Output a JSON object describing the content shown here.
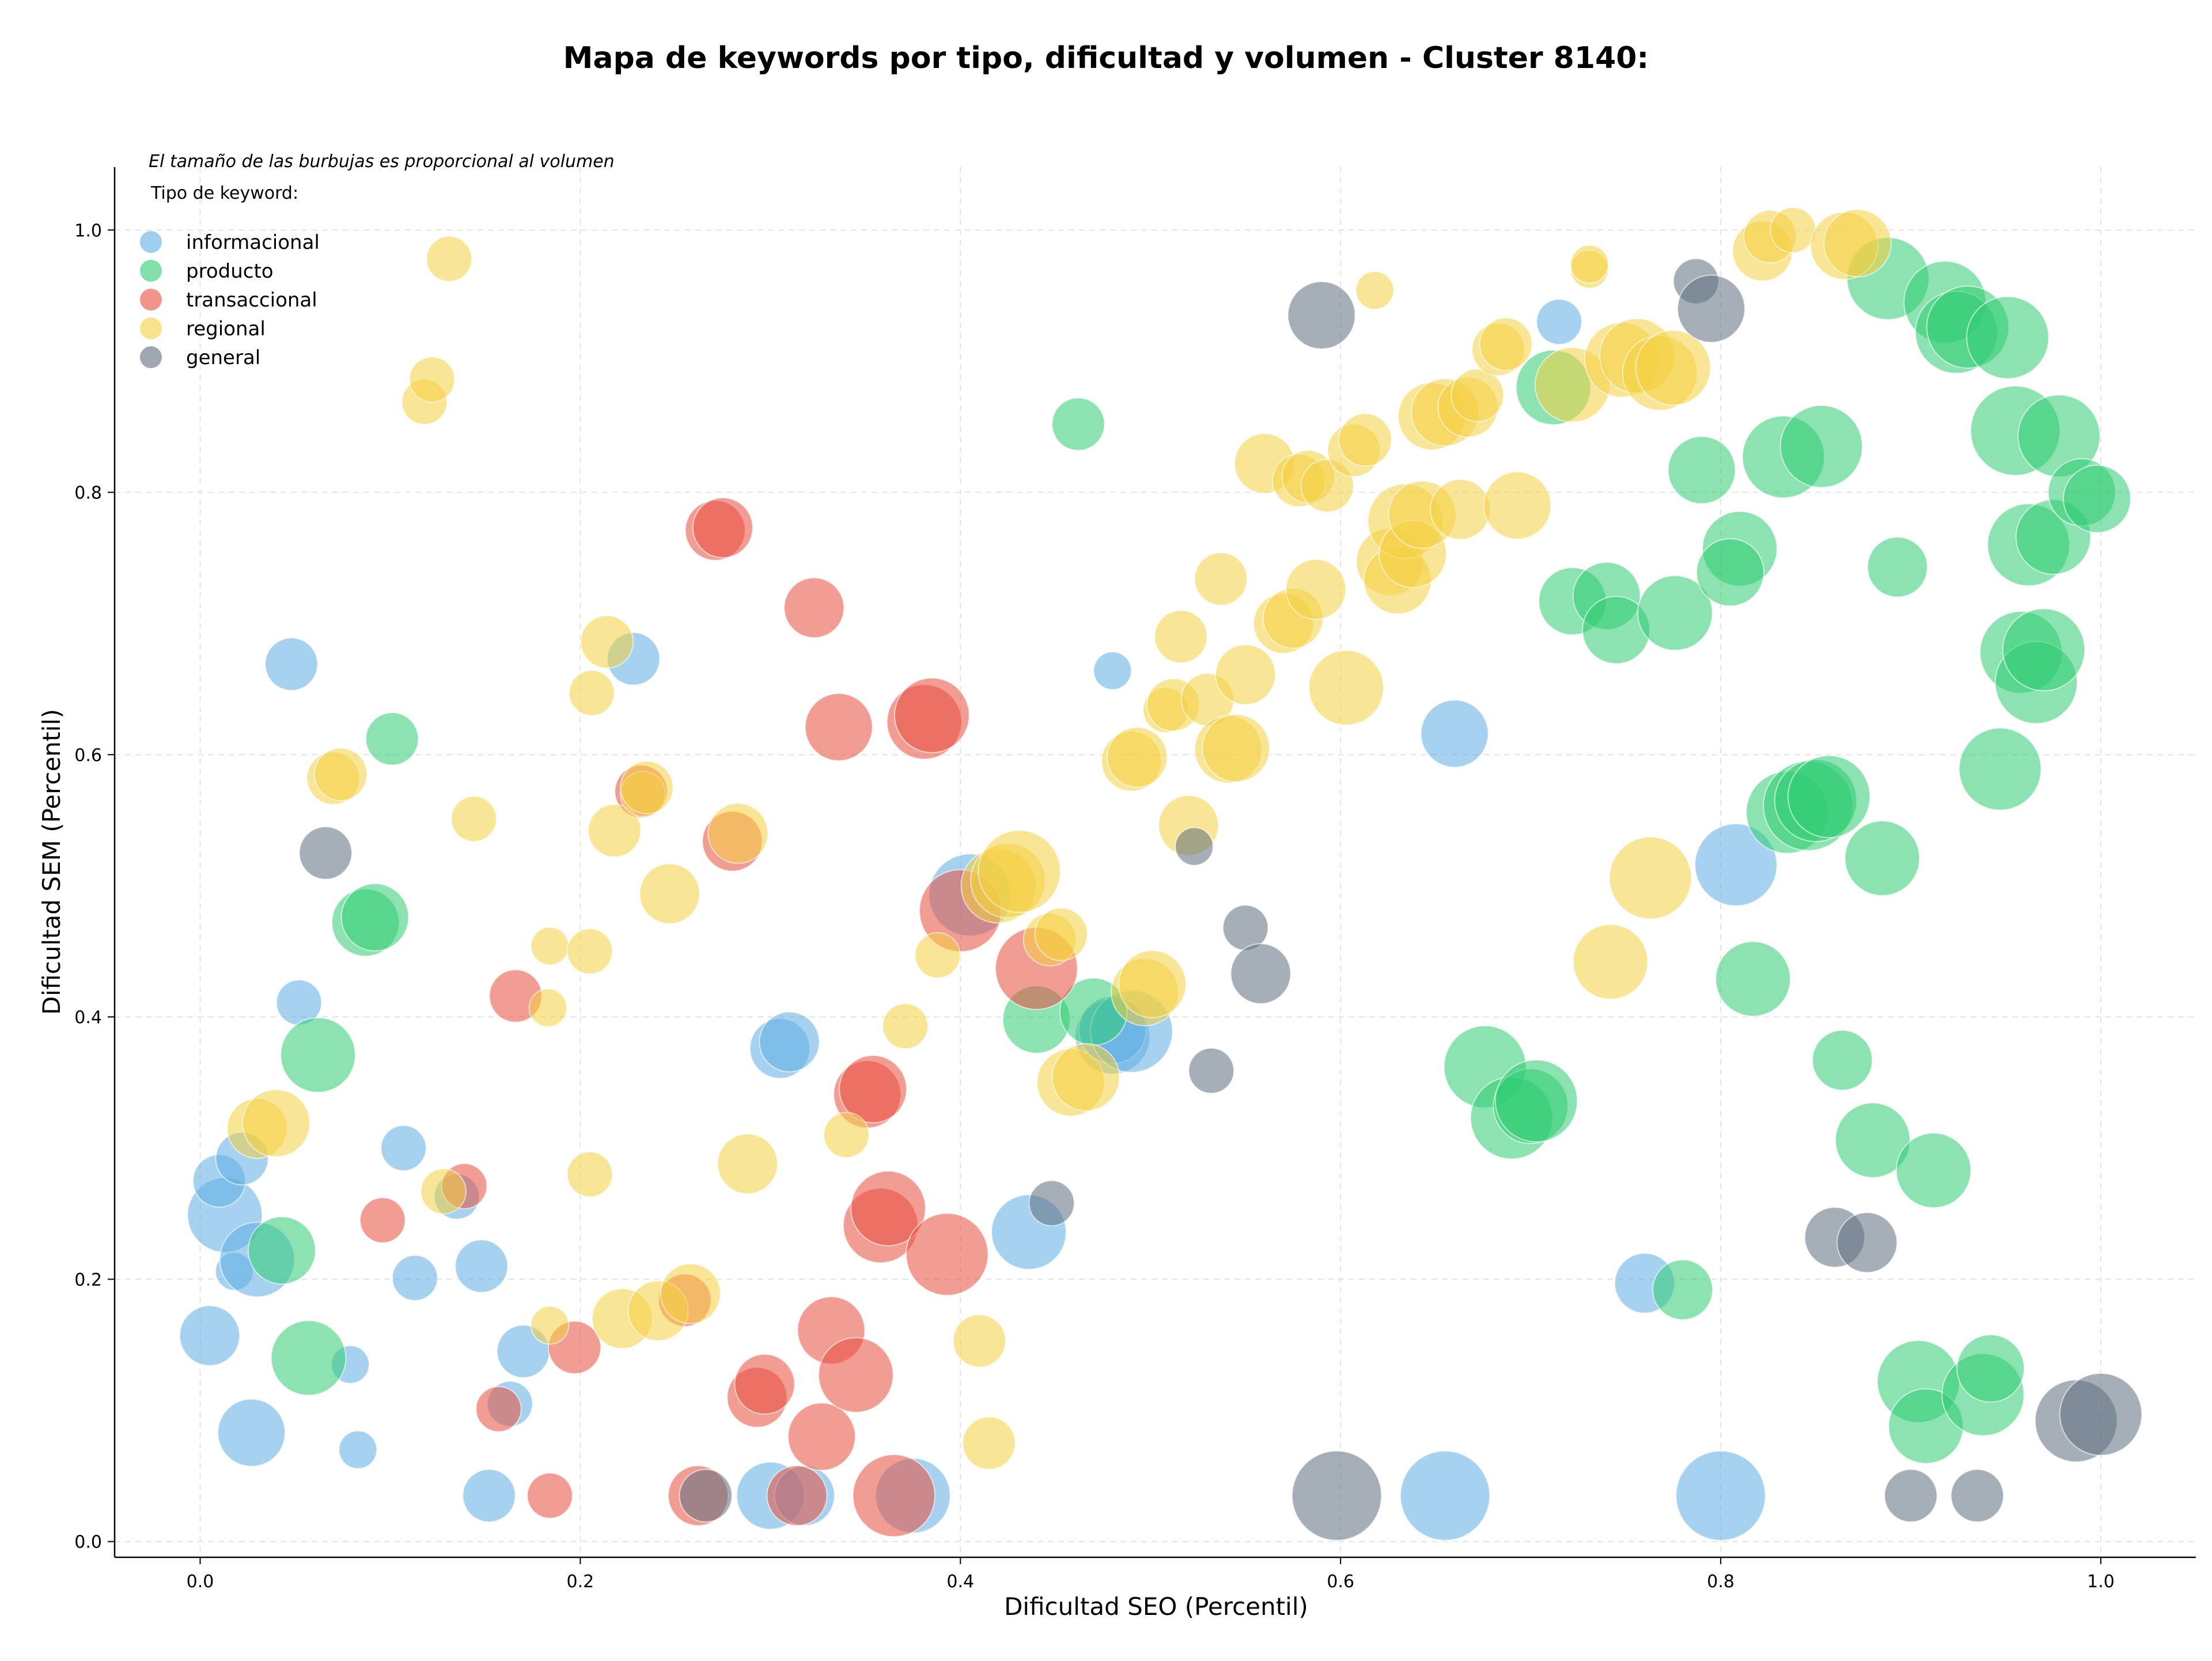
{
  "chart_data": {
    "type": "scatter",
    "title": "Mapa de keywords por tipo, dificultad y volumen - Cluster 8140:",
    "xlabel": "Dificultad SEO (Percentil)",
    "ylabel": "Dificultad SEM (Percentil)",
    "xlim": [
      -0.045,
      1.05
    ],
    "ylim": [
      -0.012,
      1.048
    ],
    "xticks": [
      "0.0",
      "0.2",
      "0.4",
      "0.6",
      "0.8",
      "1.0"
    ],
    "yticks": [
      "0.0",
      "0.2",
      "0.4",
      "0.6",
      "0.8",
      "1.0"
    ],
    "grid": true,
    "note": "El tamaño de las burbujas es proporcional al volumen",
    "legend_title": "Tipo de keyword:",
    "legend_position": "top-left",
    "series": [
      {
        "name": "informacional",
        "color": "#5DADE2",
        "points": [
          [
            0.005,
            0.157,
            5
          ],
          [
            0.013,
            0.249,
            7
          ],
          [
            0.01,
            0.275,
            4
          ],
          [
            0.022,
            0.292,
            4
          ],
          [
            0.018,
            0.206,
            2
          ],
          [
            0.027,
            0.083,
            6
          ],
          [
            0.03,
            0.215,
            7
          ],
          [
            0.048,
            0.669,
            4
          ],
          [
            0.052,
            0.411,
            3
          ],
          [
            0.079,
            0.135,
            2
          ],
          [
            0.083,
            0.07,
            2
          ],
          [
            0.107,
            0.3,
            3
          ],
          [
            0.113,
            0.201,
            3
          ],
          [
            0.135,
            0.263,
            3
          ],
          [
            0.148,
            0.21,
            4
          ],
          [
            0.152,
            0.035,
            4
          ],
          [
            0.163,
            0.105,
            3
          ],
          [
            0.17,
            0.145,
            4
          ],
          [
            0.228,
            0.673,
            4
          ],
          [
            0.3,
            0.035,
            6
          ],
          [
            0.305,
            0.376,
            5
          ],
          [
            0.31,
            0.381,
            5
          ],
          [
            0.318,
            0.035,
            5
          ],
          [
            0.375,
            0.035,
            7
          ],
          [
            0.405,
            0.493,
            8
          ],
          [
            0.436,
            0.236,
            7
          ],
          [
            0.48,
            0.664,
            2
          ],
          [
            0.48,
            0.385,
            7
          ],
          [
            0.48,
            0.39,
            6
          ],
          [
            0.49,
            0.389,
            8
          ],
          [
            0.66,
            0.616,
            6
          ],
          [
            0.715,
            0.93,
            3
          ],
          [
            0.655,
            0.035,
            9
          ],
          [
            0.76,
            0.197,
            5
          ],
          [
            0.808,
            0.516,
            8
          ],
          [
            0.8,
            0.035,
            9
          ]
        ]
      },
      {
        "name": "producto",
        "color": "#2ECC71",
        "points": [
          [
            0.043,
            0.222,
            6
          ],
          [
            0.057,
            0.14,
            7
          ],
          [
            0.062,
            0.371,
            7
          ],
          [
            0.087,
            0.472,
            6
          ],
          [
            0.092,
            0.476,
            6
          ],
          [
            0.101,
            0.612,
            4
          ],
          [
            0.44,
            0.398,
            6
          ],
          [
            0.462,
            0.852,
            4
          ],
          [
            0.47,
            0.404,
            6
          ],
          [
            0.676,
            0.362,
            8
          ],
          [
            0.69,
            0.323,
            8
          ],
          [
            0.7,
            0.332,
            7
          ],
          [
            0.703,
            0.336,
            8
          ],
          [
            0.712,
            0.88,
            7
          ],
          [
            0.722,
            0.717,
            6
          ],
          [
            0.74,
            0.721,
            6
          ],
          [
            0.745,
            0.695,
            6
          ],
          [
            0.776,
            0.708,
            7
          ],
          [
            0.78,
            0.192,
            5
          ],
          [
            0.79,
            0.817,
            6
          ],
          [
            0.81,
            0.757,
            7
          ],
          [
            0.805,
            0.739,
            6
          ],
          [
            0.817,
            0.429,
            7
          ],
          [
            0.833,
            0.827,
            8
          ],
          [
            0.835,
            0.556,
            8
          ],
          [
            0.853,
            0.835,
            8
          ],
          [
            0.846,
            0.561,
            9
          ],
          [
            0.85,
            0.565,
            8
          ],
          [
            0.857,
            0.568,
            8
          ],
          [
            0.864,
            0.367,
            5
          ],
          [
            0.88,
            0.306,
            7
          ],
          [
            0.885,
            0.521,
            7
          ],
          [
            0.888,
            0.963,
            8
          ],
          [
            0.893,
            0.743,
            5
          ],
          [
            0.904,
            0.122,
            8
          ],
          [
            0.908,
            0.088,
            7
          ],
          [
            0.912,
            0.283,
            7
          ],
          [
            0.918,
            0.945,
            8
          ],
          [
            0.924,
            0.922,
            8
          ],
          [
            0.93,
            0.926,
            8
          ],
          [
            0.938,
            0.112,
            8
          ],
          [
            0.942,
            0.132,
            6
          ],
          [
            0.947,
            0.589,
            8
          ],
          [
            0.951,
            0.918,
            8
          ],
          [
            0.955,
            0.847,
            9
          ],
          [
            0.958,
            0.678,
            8
          ],
          [
            0.962,
            0.76,
            8
          ],
          [
            0.966,
            0.655,
            8
          ],
          [
            0.97,
            0.68,
            8
          ],
          [
            0.975,
            0.766,
            7
          ],
          [
            0.978,
            0.843,
            8
          ],
          [
            0.99,
            0.8,
            6
          ],
          [
            0.998,
            0.795,
            6
          ]
        ]
      },
      {
        "name": "transaccional",
        "color": "#E74C3C",
        "points": [
          [
            0.096,
            0.245,
            3
          ],
          [
            0.139,
            0.271,
            3
          ],
          [
            0.157,
            0.101,
            3
          ],
          [
            0.166,
            0.416,
            4
          ],
          [
            0.184,
            0.035,
            3
          ],
          [
            0.197,
            0.148,
            4
          ],
          [
            0.232,
            0.572,
            4
          ],
          [
            0.255,
            0.184,
            4
          ],
          [
            0.262,
            0.035,
            5
          ],
          [
            0.271,
            0.771,
            5
          ],
          [
            0.275,
            0.773,
            5
          ],
          [
            0.28,
            0.534,
            5
          ],
          [
            0.293,
            0.11,
            5
          ],
          [
            0.297,
            0.12,
            5
          ],
          [
            0.314,
            0.035,
            5
          ],
          [
            0.323,
            0.712,
            5
          ],
          [
            0.327,
            0.08,
            6
          ],
          [
            0.332,
            0.161,
            6
          ],
          [
            0.336,
            0.621,
            6
          ],
          [
            0.345,
            0.127,
            7
          ],
          [
            0.351,
            0.341,
            6
          ],
          [
            0.354,
            0.345,
            6
          ],
          [
            0.358,
            0.241,
            7
          ],
          [
            0.362,
            0.254,
            7
          ],
          [
            0.365,
            0.035,
            8
          ],
          [
            0.381,
            0.625,
            7
          ],
          [
            0.385,
            0.63,
            7
          ],
          [
            0.393,
            0.219,
            8
          ],
          [
            0.4,
            0.481,
            8
          ],
          [
            0.44,
            0.437,
            8
          ]
        ]
      },
      {
        "name": "regional",
        "color": "#F4D03F",
        "points": [
          [
            0.03,
            0.315,
            5
          ],
          [
            0.04,
            0.319,
            6
          ],
          [
            0.07,
            0.582,
            4
          ],
          [
            0.074,
            0.585,
            4
          ],
          [
            0.118,
            0.869,
            3
          ],
          [
            0.122,
            0.886,
            3
          ],
          [
            0.128,
            0.267,
            3
          ],
          [
            0.131,
            0.978,
            3
          ],
          [
            0.144,
            0.551,
            3
          ],
          [
            0.183,
            0.407,
            2
          ],
          [
            0.184,
            0.165,
            2
          ],
          [
            0.184,
            0.454,
            2
          ],
          [
            0.205,
            0.45,
            3
          ],
          [
            0.205,
            0.28,
            3
          ],
          [
            0.206,
            0.647,
            3
          ],
          [
            0.214,
            0.686,
            4
          ],
          [
            0.218,
            0.542,
            4
          ],
          [
            0.222,
            0.17,
            5
          ],
          [
            0.233,
            0.57,
            3
          ],
          [
            0.235,
            0.575,
            4
          ],
          [
            0.241,
            0.176,
            5
          ],
          [
            0.247,
            0.494,
            5
          ],
          [
            0.258,
            0.189,
            5
          ],
          [
            0.283,
            0.54,
            5
          ],
          [
            0.288,
            0.288,
            5
          ],
          [
            0.34,
            0.31,
            3
          ],
          [
            0.371,
            0.393,
            3
          ],
          [
            0.388,
            0.447,
            3
          ],
          [
            0.41,
            0.153,
            4
          ],
          [
            0.415,
            0.075,
            4
          ],
          [
            0.42,
            0.5,
            7
          ],
          [
            0.425,
            0.504,
            7
          ],
          [
            0.431,
            0.511,
            8
          ],
          [
            0.447,
            0.459,
            4
          ],
          [
            0.453,
            0.463,
            4
          ],
          [
            0.458,
            0.35,
            6
          ],
          [
            0.466,
            0.354,
            6
          ],
          [
            0.49,
            0.595,
            5
          ],
          [
            0.493,
            0.598,
            5
          ],
          [
            0.497,
            0.419,
            6
          ],
          [
            0.501,
            0.425,
            6
          ],
          [
            0.508,
            0.634,
            3
          ],
          [
            0.512,
            0.638,
            4
          ],
          [
            0.516,
            0.69,
            4
          ],
          [
            0.52,
            0.546,
            5
          ],
          [
            0.53,
            0.642,
            4
          ],
          [
            0.537,
            0.734,
            4
          ],
          [
            0.541,
            0.604,
            6
          ],
          [
            0.545,
            0.605,
            6
          ],
          [
            0.55,
            0.661,
            5
          ],
          [
            0.56,
            0.822,
            5
          ],
          [
            0.57,
            0.7,
            5
          ],
          [
            0.575,
            0.704,
            5
          ],
          [
            0.578,
            0.809,
            4
          ],
          [
            0.583,
            0.812,
            4
          ],
          [
            0.587,
            0.726,
            5
          ],
          [
            0.593,
            0.805,
            4
          ],
          [
            0.603,
            0.651,
            7
          ],
          [
            0.607,
            0.832,
            4
          ],
          [
            0.613,
            0.84,
            4
          ],
          [
            0.618,
            0.954,
            2
          ],
          [
            0.626,
            0.747,
            6
          ],
          [
            0.63,
            0.733,
            6
          ],
          [
            0.634,
            0.778,
            7
          ],
          [
            0.638,
            0.753,
            6
          ],
          [
            0.643,
            0.783,
            6
          ],
          [
            0.648,
            0.858,
            6
          ],
          [
            0.655,
            0.861,
            6
          ],
          [
            0.663,
            0.787,
            5
          ],
          [
            0.667,
            0.865,
            5
          ],
          [
            0.672,
            0.874,
            4
          ],
          [
            0.683,
            0.909,
            4
          ],
          [
            0.687,
            0.913,
            4
          ],
          [
            0.693,
            0.79,
            6
          ],
          [
            0.722,
            0.882,
            7
          ],
          [
            0.731,
            0.97,
            2
          ],
          [
            0.731,
            0.974,
            2
          ],
          [
            0.742,
            0.442,
            7
          ],
          [
            0.748,
            0.901,
            7
          ],
          [
            0.756,
            0.904,
            7
          ],
          [
            0.763,
            0.506,
            8
          ],
          [
            0.768,
            0.891,
            7
          ],
          [
            0.775,
            0.895,
            7
          ],
          [
            0.822,
            0.984,
            5
          ],
          [
            0.826,
            0.995,
            4
          ],
          [
            0.838,
            1.0,
            3
          ],
          [
            0.865,
            0.988,
            6
          ],
          [
            0.872,
            0.99,
            6
          ]
        ]
      },
      {
        "name": "general",
        "color": "#5D6D7E",
        "points": [
          [
            0.066,
            0.525,
            4
          ],
          [
            0.266,
            0.035,
            4
          ],
          [
            0.448,
            0.258,
            3
          ],
          [
            0.523,
            0.53,
            2
          ],
          [
            0.532,
            0.359,
            3
          ],
          [
            0.55,
            0.468,
            3
          ],
          [
            0.558,
            0.433,
            5
          ],
          [
            0.59,
            0.935,
            6
          ],
          [
            0.598,
            0.035,
            9
          ],
          [
            0.787,
            0.961,
            3
          ],
          [
            0.795,
            0.94,
            6
          ],
          [
            0.86,
            0.232,
            5
          ],
          [
            0.877,
            0.228,
            5
          ],
          [
            0.9,
            0.035,
            4
          ],
          [
            0.935,
            0.035,
            4
          ],
          [
            0.987,
            0.092,
            8
          ],
          [
            1.0,
            0.097,
            8
          ]
        ]
      }
    ]
  }
}
